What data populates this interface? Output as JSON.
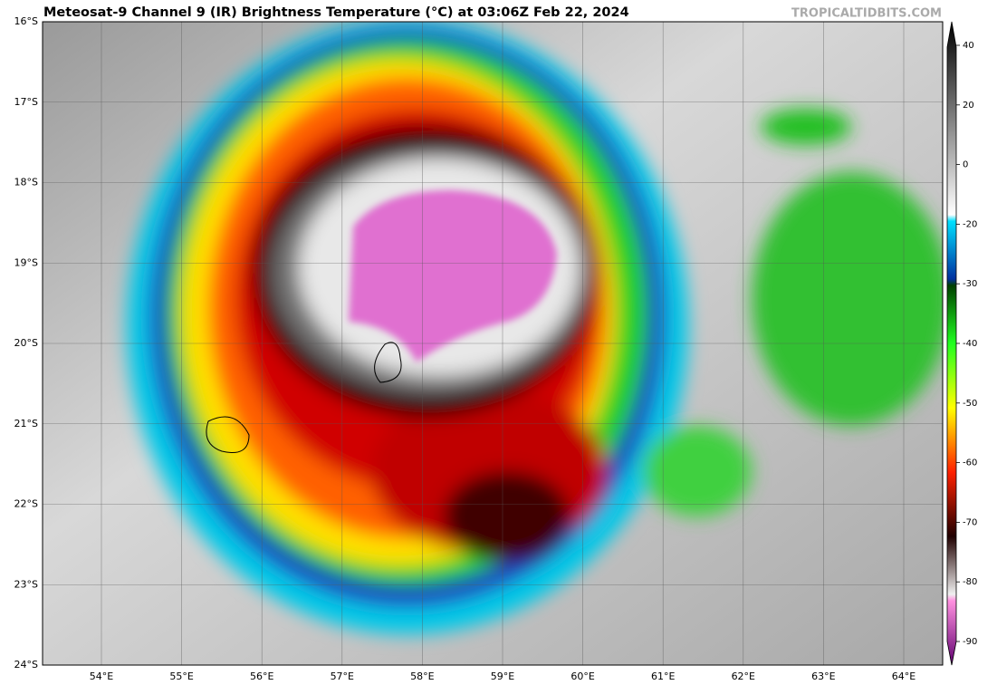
{
  "header": {
    "title": "Meteosat-9 Channel 9 (IR) Brightness Temperature (°C) at 03:06Z Feb 22, 2024",
    "watermark": "TROPICALTIDBITS.COM"
  },
  "map": {
    "lat_labels": [
      "16°S",
      "17°S",
      "18°S",
      "19°S",
      "20°S",
      "21°S",
      "22°S",
      "23°S",
      "24°S"
    ],
    "lon_labels": [
      "54°E",
      "55°E",
      "56°E",
      "57°E",
      "58°E",
      "59°E",
      "60°E",
      "61°E",
      "62°E",
      "63°E",
      "64°E"
    ]
  },
  "colorbar": {
    "ticks": [
      40,
      20,
      0,
      -20,
      -30,
      -40,
      -50,
      -60,
      -70,
      -80,
      -90
    ]
  }
}
